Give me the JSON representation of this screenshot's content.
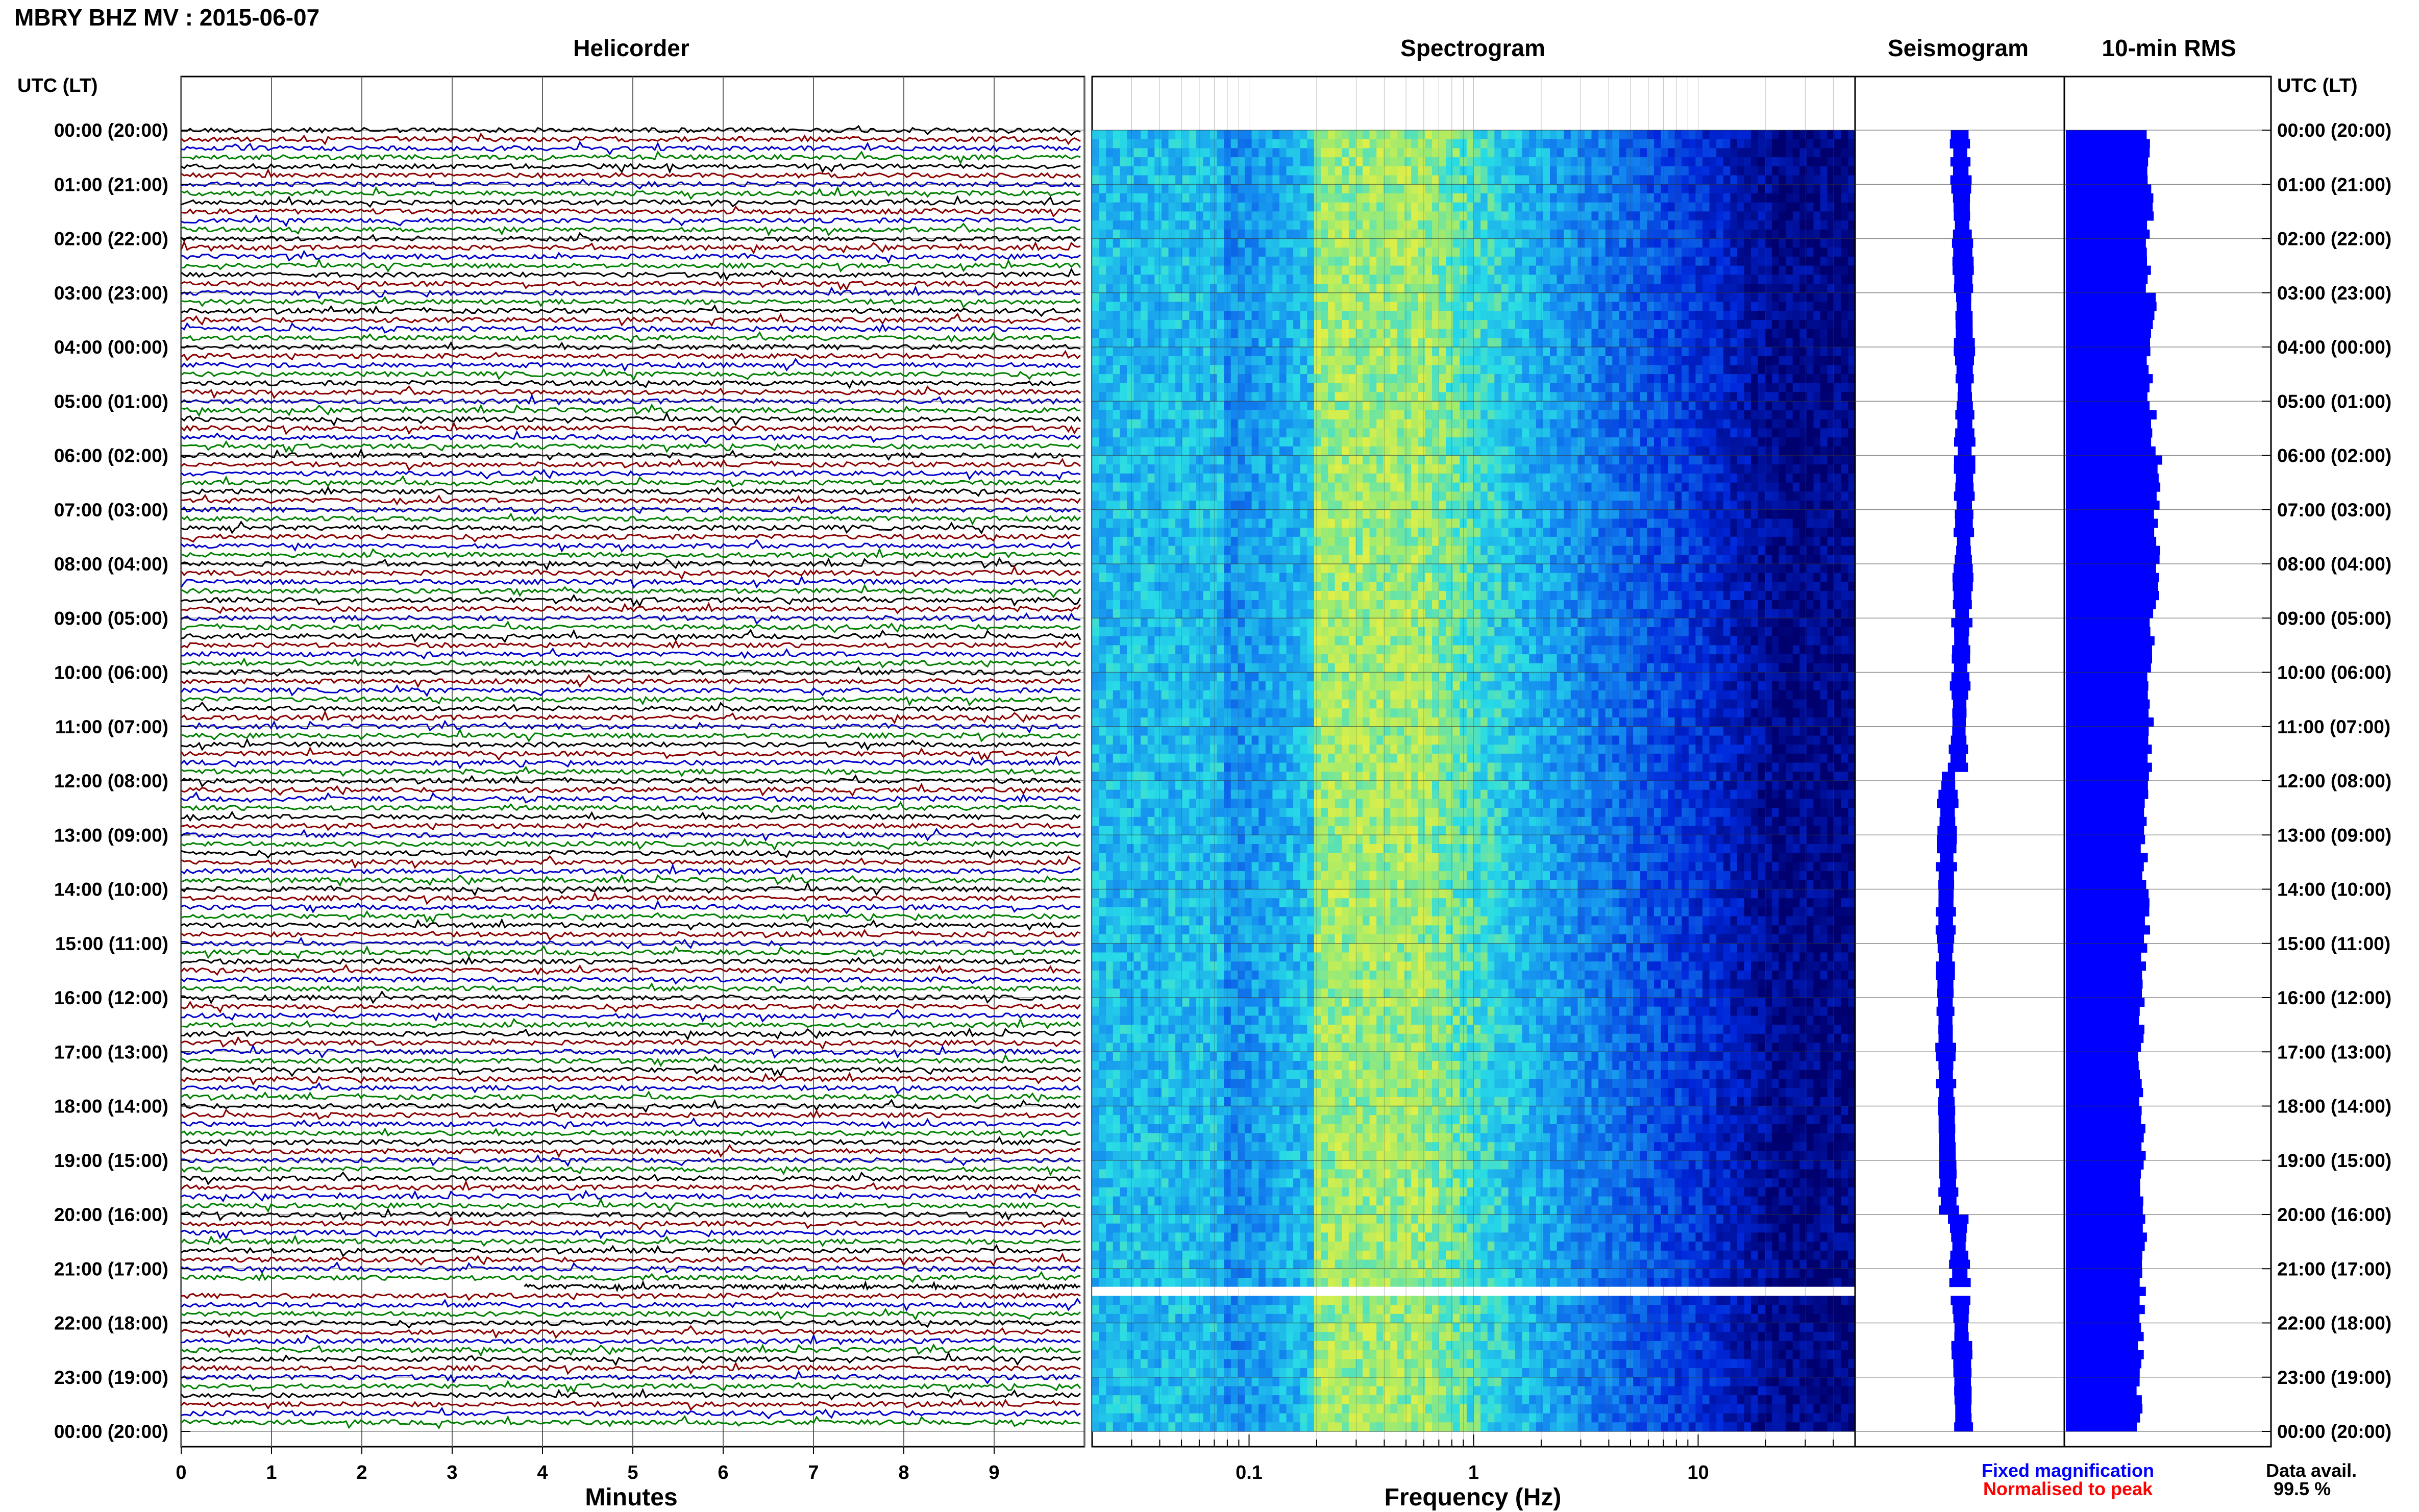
{
  "header": {
    "station_title": "MBRY BHZ MV : 2015-06-07"
  },
  "panels": {
    "helicorder": "Helicorder",
    "spectrogram": "Spectrogram",
    "seismogram": "Seismogram",
    "rms": "10-min RMS"
  },
  "axes": {
    "left_time_header": "UTC (LT)",
    "right_time_header": "UTC (LT)",
    "minutes_label": "Minutes",
    "frequency_label": "Frequency (Hz)"
  },
  "footer": {
    "fixed_magnification": "Fixed magnification",
    "normalised_to_peak": "Normalised to peak",
    "data_avail_label": "Data avail.",
    "data_avail_value": "99.5 %"
  },
  "colors": {
    "trace_colors": [
      "#000000",
      "#8b0000",
      "#0000cc",
      "#008000"
    ],
    "fixed_magnification": "#0000ff",
    "normalised_to_peak": "#ff0000",
    "rms_bar": "#0000ff",
    "seismogram": "#0000ff"
  },
  "chart_data": [
    {
      "type": "line",
      "title": "Helicorder",
      "xlabel": "Minutes",
      "ylabel": "UTC (LT)",
      "x_ticks": [
        "0",
        "1",
        "2",
        "3",
        "4",
        "5",
        "6",
        "7",
        "8",
        "9"
      ],
      "xlim": [
        0,
        10
      ],
      "time_labels": [
        "00:00 (20:00)",
        "01:00 (21:00)",
        "02:00 (22:00)",
        "03:00 (23:00)",
        "04:00 (00:00)",
        "05:00 (01:00)",
        "06:00 (02:00)",
        "07:00 (03:00)",
        "08:00 (04:00)",
        "09:00 (05:00)",
        "10:00 (06:00)",
        "11:00 (07:00)",
        "12:00 (08:00)",
        "13:00 (09:00)",
        "14:00 (10:00)",
        "15:00 (11:00)",
        "16:00 (12:00)",
        "17:00 (13:00)",
        "18:00 (14:00)",
        "19:00 (15:00)",
        "20:00 (16:00)",
        "21:00 (17:00)",
        "22:00 (18:00)",
        "23:00 (19:00)",
        "00:00 (20:00)"
      ],
      "traces_per_hour": 6,
      "gap_start_trace": 128,
      "gap_end_minute": 3.8
    },
    {
      "type": "heatmap",
      "title": "Spectrogram",
      "xlabel": "Frequency (Hz)",
      "x_scale": "log",
      "x_ticks": [
        "0.1",
        "1",
        "10"
      ],
      "xlim": [
        0.02,
        50
      ],
      "rows": 144,
      "gap_row_time": "21:20",
      "peak_band_hz": [
        0.2,
        0.5
      ]
    },
    {
      "type": "line",
      "title": "Seismogram",
      "rows": 144
    },
    {
      "type": "bar",
      "title": "10-min RMS",
      "orientation": "horizontal",
      "hourly_relative_rms": [
        0.56,
        0.58,
        0.57,
        0.6,
        0.58,
        0.6,
        0.64,
        0.63,
        0.62,
        0.6,
        0.58,
        0.57,
        0.56,
        0.54,
        0.56,
        0.54,
        0.52,
        0.52,
        0.53,
        0.52,
        0.54,
        0.53,
        0.52,
        0.51
      ]
    }
  ]
}
